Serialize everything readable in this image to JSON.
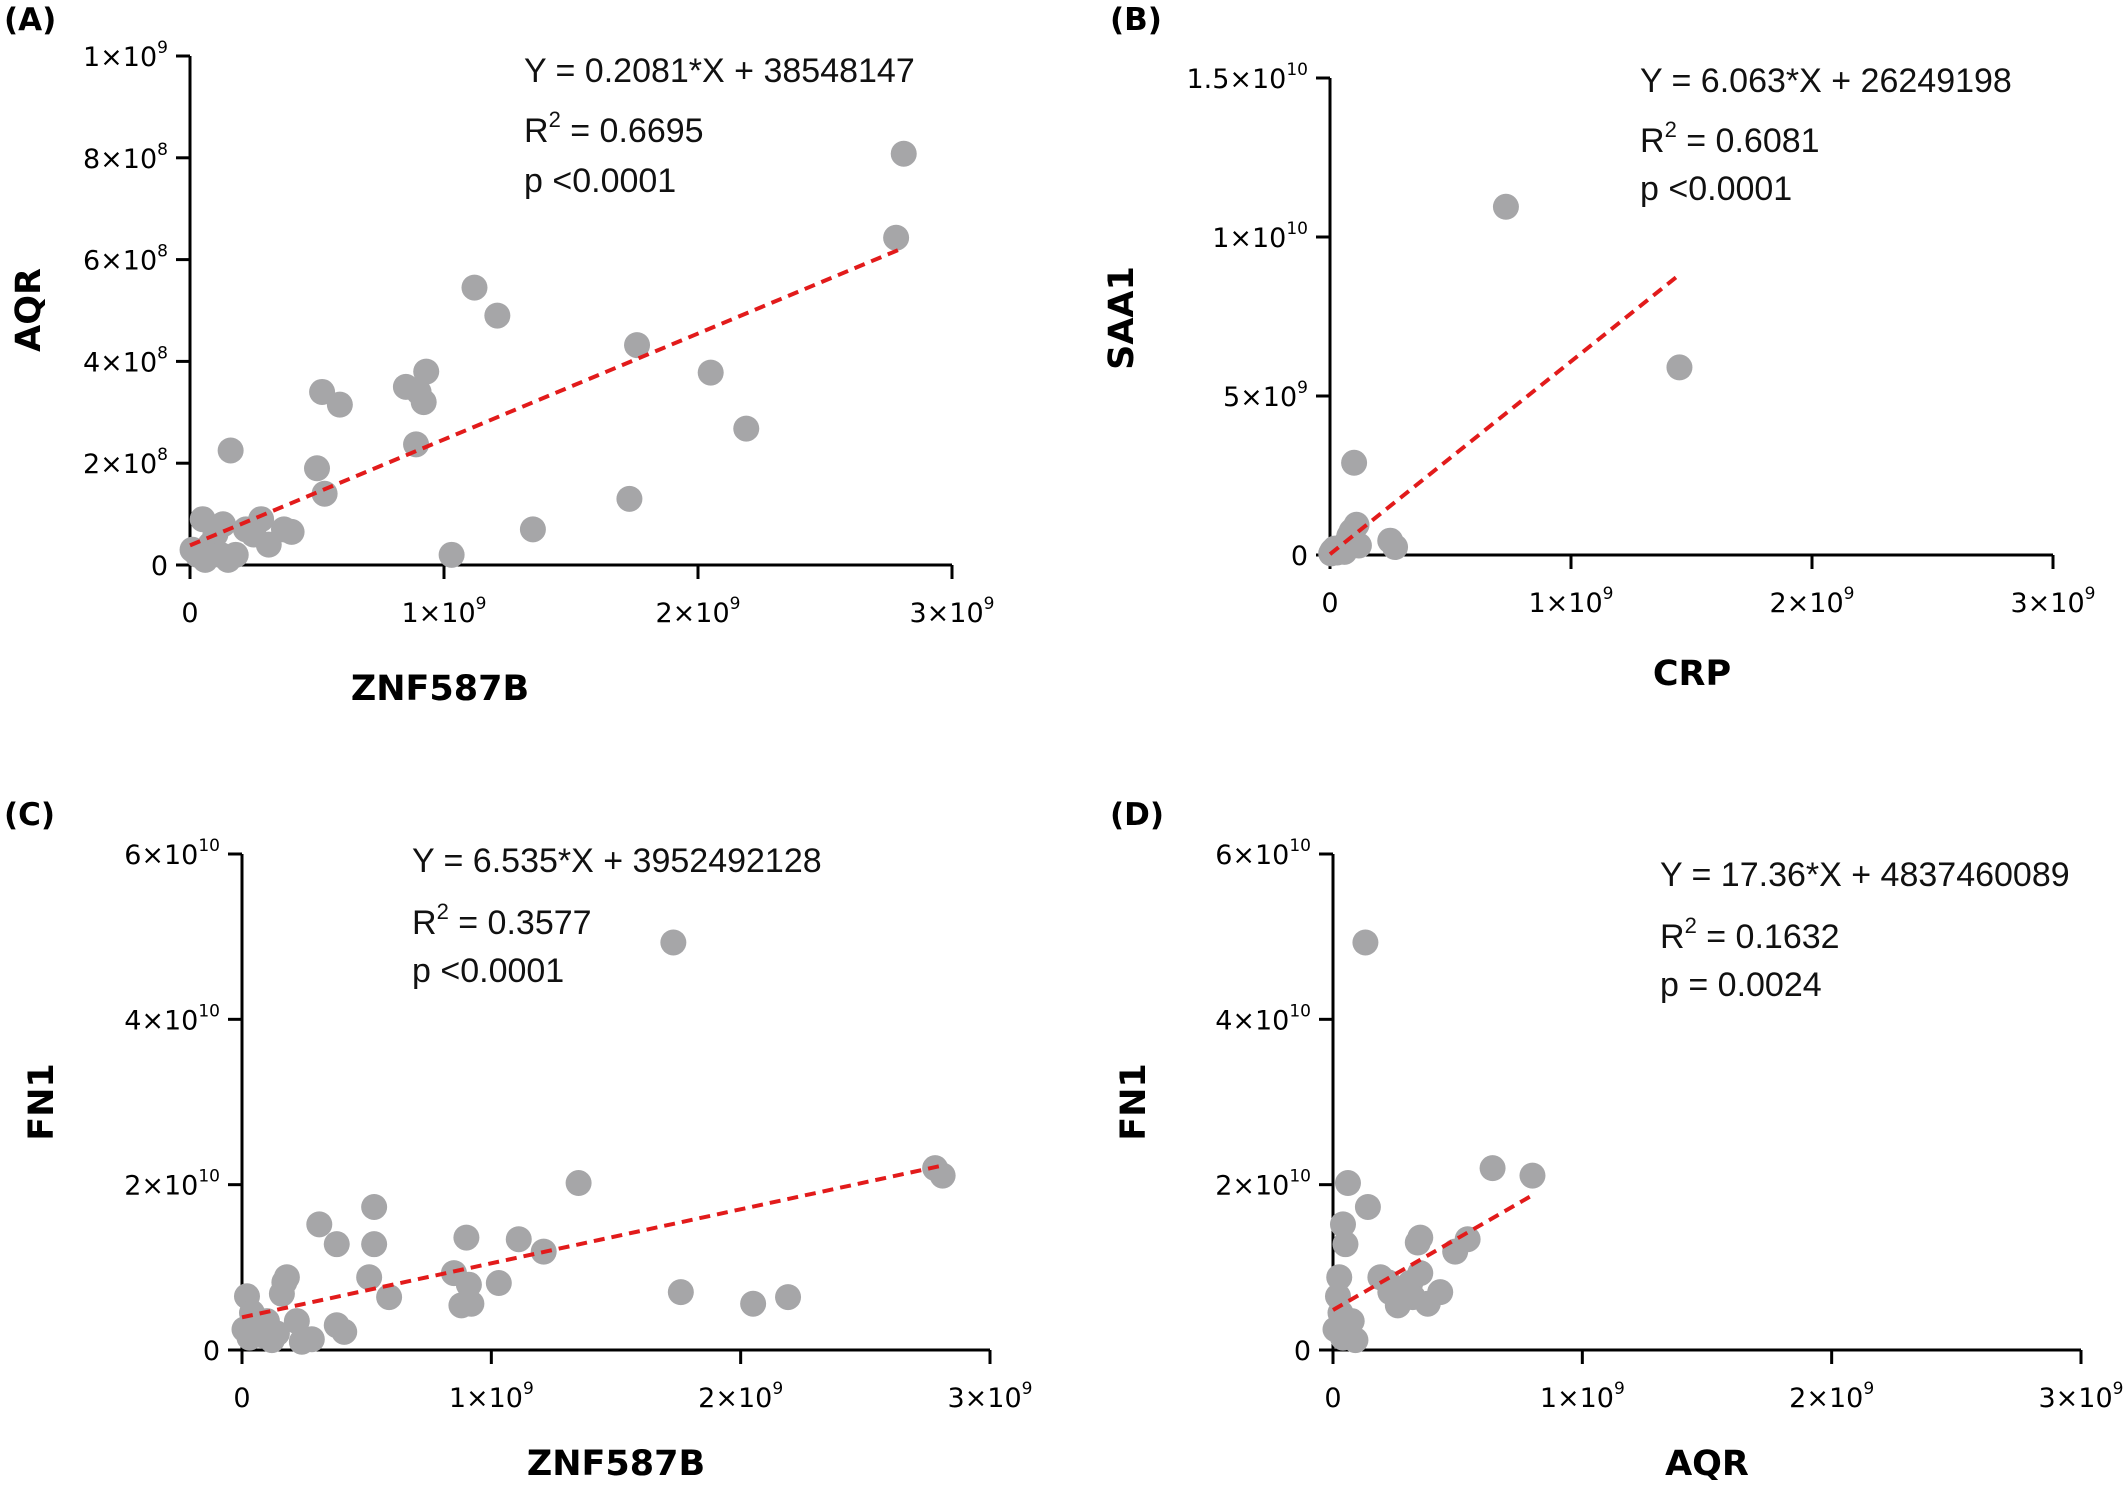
{
  "colors": {
    "point": "#a6a6a8",
    "fit": "#e21b1b",
    "axis": "#000000"
  },
  "chart_data": [
    {
      "panel": "(A)",
      "type": "scatter",
      "xlabel": "ZNF587B",
      "ylabel": "AQR",
      "xlim": [
        0,
        3000000000
      ],
      "ylim": [
        0,
        1000000000
      ],
      "x_ticks": [
        {
          "v": 0,
          "m": "0",
          "e": ""
        },
        {
          "v": 1000000000,
          "m": "1×10",
          "e": "9"
        },
        {
          "v": 2000000000,
          "m": "2×10",
          "e": "9"
        },
        {
          "v": 3000000000,
          "m": "3×10",
          "e": "9"
        }
      ],
      "y_ticks": [
        {
          "v": 0,
          "m": "0",
          "e": ""
        },
        {
          "v": 200000000,
          "m": "2×10",
          "e": "8"
        },
        {
          "v": 400000000,
          "m": "4×10",
          "e": "8"
        },
        {
          "v": 600000000,
          "m": "6×10",
          "e": "8"
        },
        {
          "v": 800000000,
          "m": "8×10",
          "e": "8"
        },
        {
          "v": 1000000000,
          "m": "1×10",
          "e": "9"
        }
      ],
      "equation": "Y = 0.2081*X + 38548147",
      "r2_label": "R",
      "r2_sup": "2",
      "r2_value": " = 0.6695",
      "p_text": "p <0.0001",
      "fit": {
        "x0": 0,
        "y0": 38548147,
        "x1": 2800000000,
        "y1": 621228147
      },
      "points": [
        [
          10000000,
          30000000
        ],
        [
          30000000,
          20000000
        ],
        [
          50000000,
          90000000
        ],
        [
          60000000,
          10000000
        ],
        [
          80000000,
          40000000
        ],
        [
          100000000,
          60000000
        ],
        [
          120000000,
          20000000
        ],
        [
          130000000,
          80000000
        ],
        [
          150000000,
          10000000
        ],
        [
          160000000,
          225000000
        ],
        [
          180000000,
          20000000
        ],
        [
          220000000,
          70000000
        ],
        [
          250000000,
          60000000
        ],
        [
          280000000,
          90000000
        ],
        [
          310000000,
          40000000
        ],
        [
          370000000,
          70000000
        ],
        [
          400000000,
          65000000
        ],
        [
          500000000,
          190000000
        ],
        [
          520000000,
          340000000
        ],
        [
          530000000,
          140000000
        ],
        [
          590000000,
          315000000
        ],
        [
          850000000,
          350000000
        ],
        [
          890000000,
          237000000
        ],
        [
          900000000,
          340000000
        ],
        [
          920000000,
          320000000
        ],
        [
          930000000,
          380000000
        ],
        [
          1030000000,
          20000000
        ],
        [
          1120000000,
          545000000
        ],
        [
          1210000000,
          490000000
        ],
        [
          1350000000,
          70000000
        ],
        [
          1730000000,
          130000000
        ],
        [
          1760000000,
          432000000
        ],
        [
          2050000000,
          378000000
        ],
        [
          2190000000,
          268000000
        ],
        [
          2780000000,
          643000000
        ],
        [
          2810000000,
          808000000
        ]
      ]
    },
    {
      "panel": "(B)",
      "type": "scatter",
      "xlabel": "CRP",
      "ylabel": "SAA1",
      "xlim": [
        0,
        3000000000
      ],
      "ylim": [
        0,
        15000000000
      ],
      "x_ticks": [
        {
          "v": 0,
          "m": "0",
          "e": ""
        },
        {
          "v": 1000000000,
          "m": "1×10",
          "e": "9"
        },
        {
          "v": 2000000000,
          "m": "2×10",
          "e": "9"
        },
        {
          "v": 3000000000,
          "m": "3×10",
          "e": "9"
        }
      ],
      "y_ticks": [
        {
          "v": 0,
          "m": "0",
          "e": ""
        },
        {
          "v": 5000000000,
          "m": "5×10",
          "e": "9"
        },
        {
          "v": 10000000000,
          "m": "1×10",
          "e": "10"
        },
        {
          "v": 15000000000,
          "m": "1.5×10",
          "e": "10"
        }
      ],
      "equation": "Y = 6.063*X + 26249198",
      "r2_label": "R",
      "r2_sup": "2",
      "r2_value": " = 0.6081",
      "p_text": "p <0.0001",
      "fit": {
        "x0": 0,
        "y0": 26249198,
        "x1": 1450000000,
        "y1": 8817599198
      },
      "points": [
        [
          5000000,
          50000000
        ],
        [
          10000000,
          120000000
        ],
        [
          20000000,
          200000000
        ],
        [
          30000000,
          80000000
        ],
        [
          40000000,
          150000000
        ],
        [
          50000000,
          250000000
        ],
        [
          60000000,
          100000000
        ],
        [
          70000000,
          400000000
        ],
        [
          80000000,
          600000000
        ],
        [
          90000000,
          750000000
        ],
        [
          100000000,
          2900000000
        ],
        [
          110000000,
          950000000
        ],
        [
          120000000,
          300000000
        ],
        [
          250000000,
          450000000
        ],
        [
          270000000,
          250000000
        ],
        [
          730000000,
          10950000000
        ],
        [
          1450000000,
          5900000000
        ]
      ]
    },
    {
      "panel": "(C)",
      "type": "scatter",
      "xlabel": "ZNF587B",
      "ylabel": "FN1",
      "xlim": [
        0,
        3000000000
      ],
      "ylim": [
        0,
        60000000000
      ],
      "x_ticks": [
        {
          "v": 0,
          "m": "0",
          "e": ""
        },
        {
          "v": 1000000000,
          "m": "1×10",
          "e": "9"
        },
        {
          "v": 2000000000,
          "m": "2×10",
          "e": "9"
        },
        {
          "v": 3000000000,
          "m": "3×10",
          "e": "9"
        }
      ],
      "y_ticks": [
        {
          "v": 0,
          "m": "0",
          "e": ""
        },
        {
          "v": 20000000000,
          "m": "2×10",
          "e": "10"
        },
        {
          "v": 40000000000,
          "m": "4×10",
          "e": "10"
        },
        {
          "v": 60000000000,
          "m": "6×10",
          "e": "10"
        }
      ],
      "equation": "Y = 6.535*X + 3952492128",
      "r2_label": "R",
      "r2_sup": "2",
      "r2_value": " = 0.3577",
      "p_text": "p <0.0001",
      "fit": {
        "x0": 0,
        "y0": 3952492128,
        "x1": 2800000000,
        "y1": 22250492128
      },
      "points": [
        [
          10000000,
          2500000000
        ],
        [
          20000000,
          6500000000
        ],
        [
          30000000,
          1500000000
        ],
        [
          40000000,
          4500000000
        ],
        [
          60000000,
          3000000000
        ],
        [
          80000000,
          1800000000
        ],
        [
          100000000,
          3500000000
        ],
        [
          120000000,
          1200000000
        ],
        [
          140000000,
          2000000000
        ],
        [
          160000000,
          6800000000
        ],
        [
          170000000,
          8200000000
        ],
        [
          180000000,
          8800000000
        ],
        [
          220000000,
          3500000000
        ],
        [
          240000000,
          1000000000
        ],
        [
          280000000,
          1300000000
        ],
        [
          310000000,
          15200000000
        ],
        [
          380000000,
          12800000000
        ],
        [
          380000000,
          3000000000
        ],
        [
          410000000,
          2200000000
        ],
        [
          510000000,
          8800000000
        ],
        [
          530000000,
          12800000000
        ],
        [
          530000000,
          17300000000
        ],
        [
          590000000,
          6400000000
        ],
        [
          850000000,
          9300000000
        ],
        [
          880000000,
          5400000000
        ],
        [
          900000000,
          13600000000
        ],
        [
          910000000,
          7900000000
        ],
        [
          920000000,
          5600000000
        ],
        [
          1030000000,
          8100000000
        ],
        [
          1110000000,
          13400000000
        ],
        [
          1210000000,
          11900000000
        ],
        [
          1350000000,
          20200000000
        ],
        [
          1730000000,
          49300000000
        ],
        [
          1760000000,
          7000000000
        ],
        [
          2050000000,
          5600000000
        ],
        [
          2190000000,
          6400000000
        ],
        [
          2780000000,
          22000000000
        ],
        [
          2810000000,
          21100000000
        ]
      ]
    },
    {
      "panel": "(D)",
      "type": "scatter",
      "xlabel": "AQR",
      "ylabel": "FN1",
      "xlim": [
        0,
        3000000000
      ],
      "ylim": [
        0,
        60000000000
      ],
      "x_ticks": [
        {
          "v": 0,
          "m": "0",
          "e": ""
        },
        {
          "v": 1000000000,
          "m": "1×10",
          "e": "9"
        },
        {
          "v": 2000000000,
          "m": "2×10",
          "e": "9"
        },
        {
          "v": 3000000000,
          "m": "3×10",
          "e": "9"
        }
      ],
      "y_ticks": [
        {
          "v": 0,
          "m": "0",
          "e": ""
        },
        {
          "v": 20000000000,
          "m": "2×10",
          "e": "10"
        },
        {
          "v": 40000000000,
          "m": "4×10",
          "e": "10"
        },
        {
          "v": 60000000000,
          "m": "6×10",
          "e": "10"
        }
      ],
      "equation": "Y = 17.36*X + 4837460089",
      "r2_label": "R",
      "r2_sup": "2",
      "r2_value": " = 0.1632",
      "p_text": "p = 0.0024",
      "fit": {
        "x0": 0,
        "y0": 4837460089,
        "x1": 800000000,
        "y1": 18725460089
      },
      "points": [
        [
          10000000,
          2500000000
        ],
        [
          20000000,
          6500000000
        ],
        [
          25000000,
          8800000000
        ],
        [
          30000000,
          4500000000
        ],
        [
          40000000,
          1500000000
        ],
        [
          40000000,
          15200000000
        ],
        [
          50000000,
          12800000000
        ],
        [
          60000000,
          3000000000
        ],
        [
          60000000,
          20200000000
        ],
        [
          70000000,
          1800000000
        ],
        [
          75000000,
          3500000000
        ],
        [
          90000000,
          1200000000
        ],
        [
          130000000,
          49300000000
        ],
        [
          140000000,
          17300000000
        ],
        [
          190000000,
          8800000000
        ],
        [
          220000000,
          8200000000
        ],
        [
          230000000,
          7000000000
        ],
        [
          260000000,
          5400000000
        ],
        [
          280000000,
          6400000000
        ],
        [
          310000000,
          8100000000
        ],
        [
          320000000,
          6400000000
        ],
        [
          340000000,
          13000000000
        ],
        [
          350000000,
          13600000000
        ],
        [
          350000000,
          9300000000
        ],
        [
          380000000,
          5600000000
        ],
        [
          430000000,
          7000000000
        ],
        [
          490000000,
          11900000000
        ],
        [
          540000000,
          13400000000
        ],
        [
          640000000,
          22000000000
        ],
        [
          800000000,
          21100000000
        ]
      ]
    }
  ]
}
